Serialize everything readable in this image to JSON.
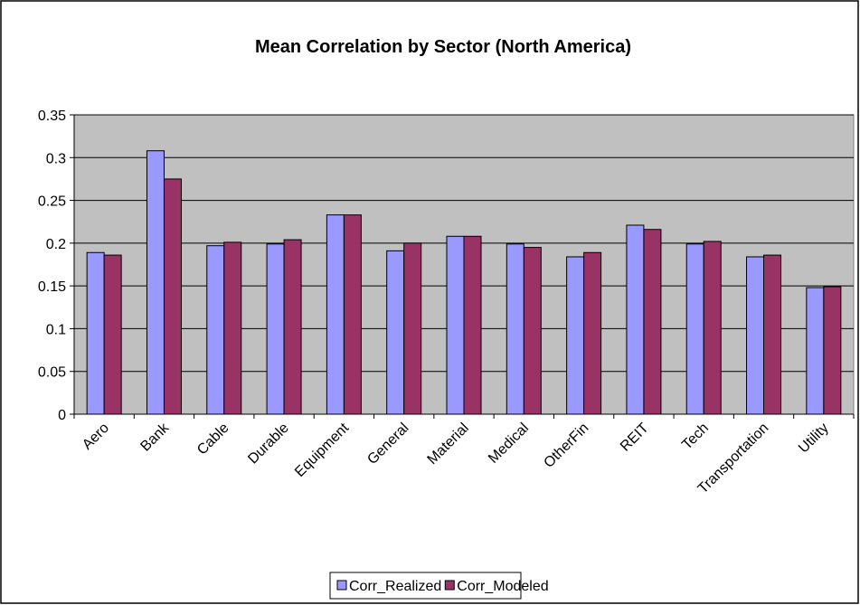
{
  "chart_data": {
    "type": "bar",
    "title": "Mean Correlation by Sector (North America)",
    "categories": [
      "Aero",
      "Bank",
      "Cable",
      "Durable",
      "Equipment",
      "General",
      "Material",
      "Medical",
      "OtherFin",
      "REIT",
      "Tech",
      "Transportation",
      "Utility"
    ],
    "series": [
      {
        "name": "Corr_Realized",
        "color": "#9999ff",
        "values": [
          0.189,
          0.308,
          0.197,
          0.199,
          0.233,
          0.191,
          0.208,
          0.199,
          0.184,
          0.221,
          0.199,
          0.184,
          0.148
        ]
      },
      {
        "name": "Corr_Modeled",
        "color": "#993366",
        "values": [
          0.186,
          0.275,
          0.201,
          0.204,
          0.233,
          0.2,
          0.208,
          0.195,
          0.189,
          0.216,
          0.202,
          0.186,
          0.149
        ]
      }
    ],
    "ylim": [
      0,
      0.35
    ],
    "yticks": [
      0,
      0.05,
      0.1,
      0.15,
      0.2,
      0.25,
      0.3,
      0.35
    ],
    "grid": true,
    "legend": "bottom"
  }
}
